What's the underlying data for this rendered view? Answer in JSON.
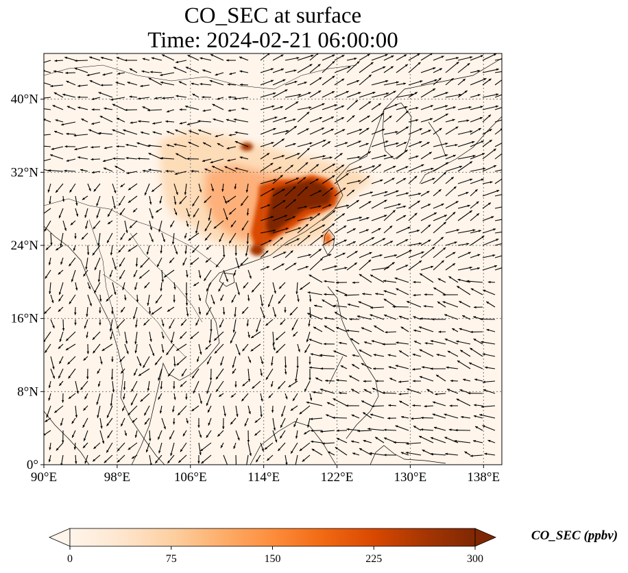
{
  "title": {
    "line1": "CO_SEC at surface",
    "line2": "Time: 2024-02-21 06:00:00"
  },
  "map": {
    "lon_range": [
      90,
      140
    ],
    "lat_range": [
      0,
      45
    ],
    "lon_ticks": [
      {
        "value": 90,
        "label": "90°E"
      },
      {
        "value": 98,
        "label": "98°E"
      },
      {
        "value": 106,
        "label": "106°E"
      },
      {
        "value": 114,
        "label": "114°E"
      },
      {
        "value": 122,
        "label": "122°E"
      },
      {
        "value": 130,
        "label": "130°E"
      },
      {
        "value": 138,
        "label": "138°E"
      }
    ],
    "lat_ticks": [
      {
        "value": 0,
        "label": "0°"
      },
      {
        "value": 8,
        "label": "8°N"
      },
      {
        "value": 16,
        "label": "16°N"
      },
      {
        "value": 24,
        "label": "24°N"
      },
      {
        "value": 32,
        "label": "32°N"
      },
      {
        "value": 40,
        "label": "40°N"
      }
    ],
    "gridlines": "dotted",
    "background_color": "#fff5eb",
    "features": [
      "coastlines",
      "country-borders",
      "wind-vectors"
    ]
  },
  "colorbar": {
    "label": "CO_SEC (ppbv)",
    "min": 0,
    "max": 300,
    "extend": "both",
    "ticks": [
      {
        "value": 0,
        "label": "0"
      },
      {
        "value": 75,
        "label": "75"
      },
      {
        "value": 150,
        "label": "150"
      },
      {
        "value": 225,
        "label": "225"
      },
      {
        "value": 300,
        "label": "300"
      }
    ],
    "colors": [
      "#fff5eb",
      "#fee6ce",
      "#fdd0a2",
      "#fdae6b",
      "#fd8d3c",
      "#f16913",
      "#d94801",
      "#a63603",
      "#7f2704"
    ]
  }
}
